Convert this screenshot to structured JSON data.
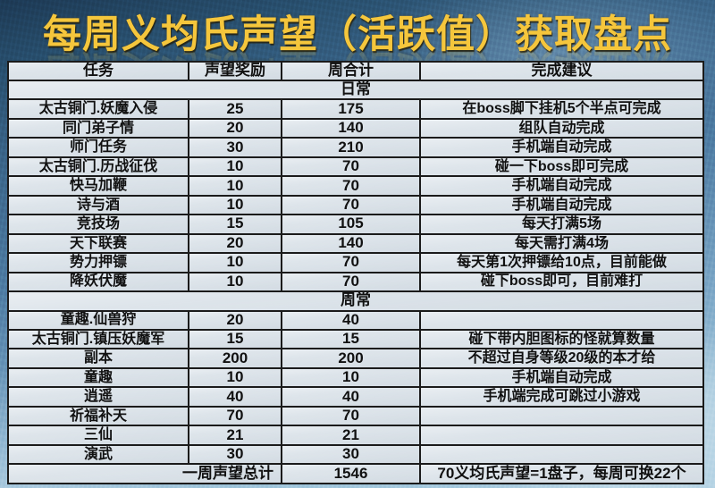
{
  "title": "每周义均氏声望（活跃值）获取盘点",
  "chart_data": {
    "type": "table",
    "title": "每周义均氏声望（活跃值）获取盘点",
    "columns": [
      "任务",
      "声望奖励",
      "周合计",
      "完成建议"
    ],
    "sections": [
      {
        "label": "日常",
        "rows": [
          {
            "task": "太古铜门.妖魔入侵",
            "reward": 25,
            "weekly": 175,
            "tip": "在boss脚下挂机5个半点可完成"
          },
          {
            "task": "同门弟子情",
            "reward": 20,
            "weekly": 140,
            "tip": "组队自动完成"
          },
          {
            "task": "师门任务",
            "reward": 30,
            "weekly": 210,
            "tip": "手机端自动完成"
          },
          {
            "task": "太古铜门.历战征伐",
            "reward": 10,
            "weekly": 70,
            "tip": "碰一下boss即可完成"
          },
          {
            "task": "快马加鞭",
            "reward": 10,
            "weekly": 70,
            "tip": "手机端自动完成"
          },
          {
            "task": "诗与酒",
            "reward": 10,
            "weekly": 70,
            "tip": "手机端自动完成"
          },
          {
            "task": "竞技场",
            "reward": 15,
            "weekly": 105,
            "tip": "每天打满5场"
          },
          {
            "task": "天下联赛",
            "reward": 20,
            "weekly": 140,
            "tip": "每天需打满4场"
          },
          {
            "task": "势力押镖",
            "reward": 10,
            "weekly": 70,
            "tip": "每天第1次押镖给10点，目前能做"
          },
          {
            "task": "降妖伏魔",
            "reward": 10,
            "weekly": 70,
            "tip": "碰下boss即可，目前难打"
          }
        ]
      },
      {
        "label": "周常",
        "rows": [
          {
            "task": "童趣.仙兽狩",
            "reward": 20,
            "weekly": 40,
            "tip": ""
          },
          {
            "task": "太古铜门.镇压妖魔军",
            "reward": 15,
            "weekly": 15,
            "tip": "碰下带内胆图标的怪就算数量"
          },
          {
            "task": "副本",
            "reward": 200,
            "weekly": 200,
            "tip": "不超过自身等级20级的本才给"
          },
          {
            "task": "童趣",
            "reward": 10,
            "weekly": 10,
            "tip": "手机端自动完成"
          },
          {
            "task": "逍遥",
            "reward": 40,
            "weekly": 40,
            "tip": "手机端完成可跳过小游戏"
          },
          {
            "task": "祈福补天",
            "reward": 70,
            "weekly": 70,
            "tip": ""
          },
          {
            "task": "三仙",
            "reward": 21,
            "weekly": 21,
            "tip": ""
          },
          {
            "task": "演武",
            "reward": 30,
            "weekly": 30,
            "tip": ""
          }
        ]
      }
    ],
    "footer": {
      "label": "一周声望总计",
      "weekly_total": 1546,
      "note": "70义均氏声望=1盘子，每周可换22个"
    }
  },
  "colors": {
    "background_top": "#1d3a55",
    "background_mid": "#4e7ca3",
    "background_bottom": "#aecfe2",
    "title_text": "#f5c63c",
    "cell_background": "#dee5eb",
    "table_border": "#1b1b1b",
    "cell_text": "#111111"
  }
}
